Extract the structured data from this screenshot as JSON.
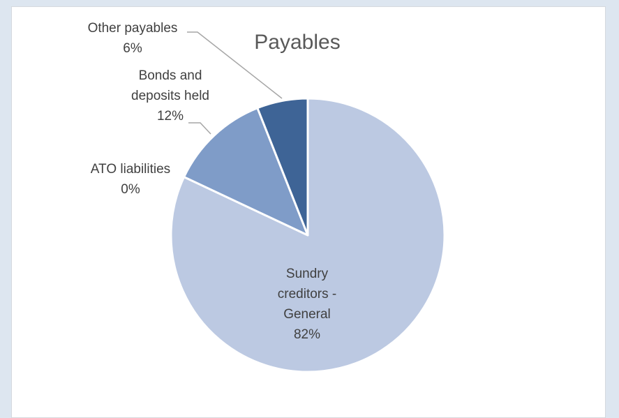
{
  "chart_data": {
    "type": "pie",
    "title": "Payables",
    "slices": [
      {
        "name": "Sundry creditors - General",
        "label_lines": [
          "Sundry",
          "creditors -",
          "General"
        ],
        "percent_label": "82%",
        "value": 82,
        "color": "#bcc9e2"
      },
      {
        "name": "ATO liabilities",
        "label_lines": [
          "ATO liabilities"
        ],
        "percent_label": "0%",
        "value": 0,
        "color": "#8aa3cc"
      },
      {
        "name": "Bonds and deposits held",
        "label_lines": [
          "Bonds and",
          "deposits held"
        ],
        "percent_label": "12%",
        "value": 12,
        "color": "#7f9cc8"
      },
      {
        "name": "Other payables",
        "label_lines": [
          "Other payables"
        ],
        "percent_label": "6%",
        "value": 6,
        "color": "#3e6496"
      }
    ],
    "start": "12 o'clock",
    "direction": "clockwise",
    "label_color": "#404040",
    "leader_color": "#a6a6a6",
    "legend": "none"
  }
}
